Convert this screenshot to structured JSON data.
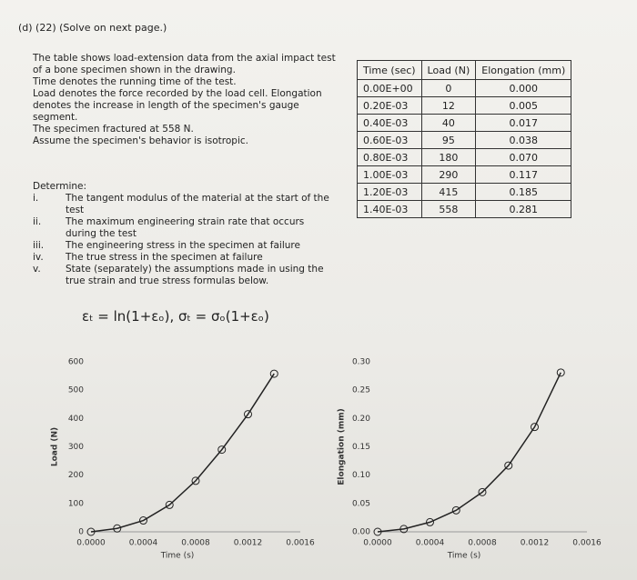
{
  "header": "(d)   (22) (Solve on next page.)",
  "intro": [
    "The table shows load-extension data from the axial impact test",
    "of a bone specimen shown in the drawing.",
    "Time denotes the running time of the test.",
    "Load denotes the force recorded by the load cell. Elongation",
    "denotes the increase in length of the specimen's gauge",
    "segment.",
    "The specimen fractured at 558 N.",
    "Assume the specimen's behavior is isotropic."
  ],
  "determine": {
    "title": "Determine:",
    "items": [
      {
        "numeral": "i.",
        "text": "The tangent modulus of the material at the start of the test"
      },
      {
        "numeral": "ii.",
        "text": "The maximum engineering strain rate that occurs during the test"
      },
      {
        "numeral": "iii.",
        "text": "The engineering stress in the specimen at failure"
      },
      {
        "numeral": "iv.",
        "text": "The true stress in the specimen at failure"
      },
      {
        "numeral": "v.",
        "text": "State (separately) the assumptions made in using the true strain and true stress formulas below."
      }
    ]
  },
  "formula": "εₜ = ln(1+εₒ),  σₜ = σₒ(1+εₒ)",
  "table": {
    "header": [
      "Time (sec)",
      "Load (N)",
      "Elongation (mm)"
    ],
    "rows": [
      [
        "0.00E+00",
        "0",
        "0.000"
      ],
      [
        "0.20E-03",
        "12",
        "0.005"
      ],
      [
        "0.40E-03",
        "40",
        "0.017"
      ],
      [
        "0.60E-03",
        "95",
        "0.038"
      ],
      [
        "0.80E-03",
        "180",
        "0.070"
      ],
      [
        "1.00E-03",
        "290",
        "0.117"
      ],
      [
        "1.20E-03",
        "415",
        "0.185"
      ],
      [
        "1.40E-03",
        "558",
        "0.281"
      ]
    ]
  },
  "charts": [
    {
      "type": "line",
      "xlabel": "Time (s)",
      "ylabel": "Load (N)",
      "color": "#222222",
      "x": [
        0,
        0.0002,
        0.0004,
        0.0006,
        0.0008,
        0.001,
        0.0012,
        0.0014
      ],
      "values": [
        0,
        12,
        40,
        95,
        180,
        290,
        415,
        558
      ],
      "xlim": [
        0,
        0.0016
      ],
      "ylim": [
        0,
        600
      ],
      "xticks": [
        {
          "value": 0,
          "label": "0.0000"
        },
        {
          "value": 0.0004,
          "label": "0.0004"
        },
        {
          "value": 0.0008,
          "label": "0.0008"
        },
        {
          "value": 0.0012,
          "label": "0.0012"
        },
        {
          "value": 0.0016,
          "label": "0.0016"
        }
      ],
      "yticks": [
        0,
        100,
        200,
        300,
        400,
        500,
        600
      ]
    },
    {
      "type": "line",
      "xlabel": "Time (s)",
      "ylabel": "Elongation (mm)",
      "color": "#222222",
      "x": [
        0,
        0.0002,
        0.0004,
        0.0006,
        0.0008,
        0.001,
        0.0012,
        0.0014
      ],
      "values": [
        0,
        0.005,
        0.017,
        0.038,
        0.07,
        0.117,
        0.185,
        0.281
      ],
      "xlim": [
        0,
        0.0016
      ],
      "ylim": [
        0,
        0.3
      ],
      "xticks": [
        {
          "value": 0,
          "label": "0.0000"
        },
        {
          "value": 0.0004,
          "label": "0.0004"
        },
        {
          "value": 0.0008,
          "label": "0.0008"
        },
        {
          "value": 0.0012,
          "label": "0.0012"
        },
        {
          "value": 0.0016,
          "label": "0.0016"
        }
      ],
      "yticks": [
        {
          "value": 0,
          "label": "0.00"
        },
        0.05,
        {
          "value": 0.1,
          "label": "0.10"
        },
        0.15,
        {
          "value": 0.2,
          "label": "0.20"
        },
        0.25,
        {
          "value": 0.3,
          "label": "0.30"
        }
      ]
    }
  ]
}
